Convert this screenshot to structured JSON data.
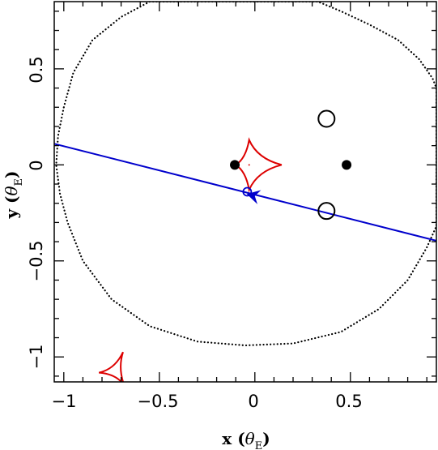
{
  "chart_data": {
    "type": "scatter",
    "xlim": [
      -1.05,
      0.95
    ],
    "ylim": [
      -1.13,
      0.85
    ],
    "x_ticks": [
      -1,
      -0.5,
      0,
      0.5
    ],
    "y_ticks": [
      -1,
      -0.5,
      0,
      0.5
    ],
    "x_tick_labels": [
      "−1",
      "−0.5",
      "0",
      "0.5"
    ],
    "y_tick_labels": [
      "−1",
      "−0.5",
      "0",
      "0.5"
    ],
    "xlabel": {
      "main": "x",
      "symbol": "θ",
      "sub": "E"
    },
    "ylabel": {
      "main": "y",
      "symbol": "θ",
      "sub": "E"
    },
    "grid": false,
    "colors": {
      "trajectory": "#0000cc",
      "caustic": "#dd0000",
      "critical_curve": "#000000"
    },
    "lens_masses": [
      {
        "x": -0.105,
        "y": 0.0
      },
      {
        "x": 0.48,
        "y": 0.0
      }
    ],
    "image_positions": [
      {
        "x": 0.375,
        "y": 0.24
      },
      {
        "x": 0.375,
        "y": -0.24
      }
    ],
    "source": {
      "x": -0.04,
      "y": -0.14
    },
    "trajectory": {
      "start": [
        -1.05,
        0.11
      ],
      "end": [
        0.95,
        -0.395
      ]
    },
    "direction_arrow": {
      "x": -0.01,
      "y": -0.16,
      "points_to": "left"
    },
    "central_caustic": {
      "x": -0.03,
      "y": 0.0,
      "half_width_left": 0.07,
      "half_width_right": 0.17,
      "half_height": 0.13
    },
    "planetary_caustic": {
      "x": -0.72,
      "y": -1.07,
      "size": 0.06
    },
    "critical_curve": [
      [
        -1.0,
        0.3
      ],
      [
        -0.95,
        0.48
      ],
      [
        -0.85,
        0.65
      ],
      [
        -0.7,
        0.77
      ],
      [
        -0.55,
        0.85
      ],
      [
        0.33,
        0.85
      ],
      [
        0.45,
        0.8
      ],
      [
        0.6,
        0.73
      ],
      [
        0.75,
        0.65
      ],
      [
        0.86,
        0.55
      ],
      [
        0.93,
        0.45
      ],
      [
        0.95,
        0.4
      ],
      [
        0.95,
        -0.32
      ],
      [
        0.9,
        -0.43
      ],
      [
        0.8,
        -0.6
      ],
      [
        0.65,
        -0.75
      ],
      [
        0.45,
        -0.87
      ],
      [
        0.2,
        -0.93
      ],
      [
        -0.05,
        -0.94
      ],
      [
        -0.3,
        -0.92
      ],
      [
        -0.55,
        -0.84
      ],
      [
        -0.75,
        -0.7
      ],
      [
        -0.9,
        -0.5
      ],
      [
        -0.98,
        -0.3
      ],
      [
        -1.02,
        -0.15
      ],
      [
        -1.04,
        0.0
      ],
      [
        -1.03,
        0.15
      ],
      [
        -1.0,
        0.3
      ]
    ]
  }
}
